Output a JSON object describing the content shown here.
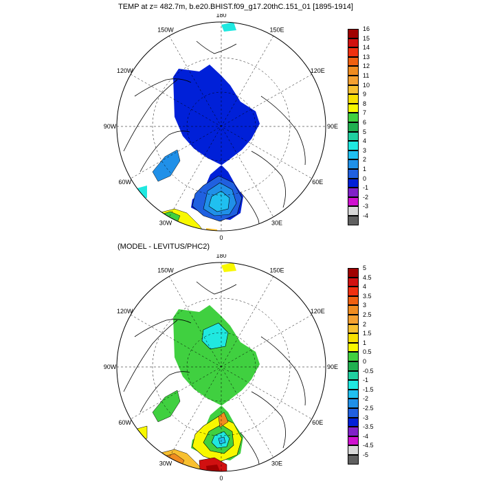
{
  "panel_top": {
    "title": "TEMP at z= 482.7m, b.e20.BHIST.f09_g17.20thC.151_01 [1895-1914]",
    "lon_labels": [
      "180",
      "150E",
      "120E",
      "90E",
      "60E",
      "30E",
      "0",
      "30W",
      "60W",
      "90W",
      "120W",
      "150W"
    ],
    "colorbar": {
      "labels": [
        "16",
        "15",
        "14",
        "13",
        "12",
        "11",
        "10",
        "9",
        "8",
        "7",
        "6",
        "5",
        "4",
        "3",
        "2",
        "1",
        "0",
        "-1",
        "-2",
        "-3",
        "-4"
      ],
      "colors": [
        "#a00000",
        "#d11010",
        "#f03010",
        "#f06010",
        "#f08c20",
        "#f5a030",
        "#f8c030",
        "#f8e000",
        "#f8f800",
        "#40d040",
        "#20b050",
        "#20d0a0",
        "#20e8e0",
        "#20c0f0",
        "#2090e8",
        "#2060e0",
        "#0020d8",
        "#8020c8",
        "#d010d0",
        "#d8d8d8",
        "#606060"
      ]
    }
  },
  "panel_bottom": {
    "title": "(MODEL - LEVITUS/PHC2)",
    "lon_labels": [
      "180",
      "150E",
      "120E",
      "90E",
      "60E",
      "30E",
      "0",
      "30W",
      "60W",
      "90W",
      "120W",
      "150W"
    ],
    "colorbar": {
      "labels": [
        "5",
        "4.5",
        "4",
        "3.5",
        "3",
        "2.5",
        "2",
        "1.5",
        "1",
        "0.5",
        "0",
        "-0.5",
        "-1",
        "-1.5",
        "-2",
        "-2.5",
        "-3",
        "-3.5",
        "-4",
        "-4.5",
        "-5"
      ],
      "colors": [
        "#a00000",
        "#d11010",
        "#f03010",
        "#f06010",
        "#f08c20",
        "#f5a030",
        "#f8c030",
        "#f8e000",
        "#f8f800",
        "#40d040",
        "#20b050",
        "#20d0a0",
        "#20e8e0",
        "#20c0f0",
        "#2090e8",
        "#2060e0",
        "#0020d8",
        "#8020c8",
        "#d010d0",
        "#d8d8d8",
        "#606060"
      ]
    }
  },
  "colors": {
    "blue_core": "#0020d8",
    "blue_mid": "#2060e0",
    "blue_light": "#2090e8",
    "cyan": "#20e8e0",
    "green": "#40d040",
    "green_teal": "#20d0a0",
    "yellow": "#f8f800",
    "orange": "#f08c20",
    "red": "#d11010",
    "darkred": "#a00000"
  }
}
